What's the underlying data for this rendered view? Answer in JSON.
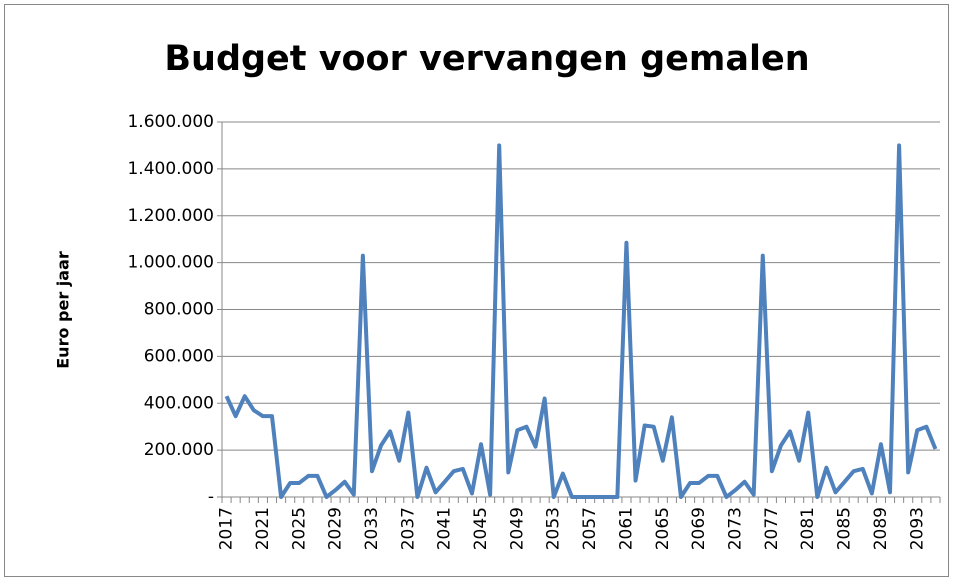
{
  "chart_data": {
    "type": "line",
    "title": "Budget voor vervangen gemalen",
    "y_label": "Euro per jaar",
    "categories": [
      "2017",
      null,
      null,
      null,
      "2021",
      null,
      null,
      null,
      "2025",
      null,
      null,
      null,
      "2029",
      null,
      null,
      null,
      "2033",
      null,
      null,
      null,
      "2037",
      null,
      null,
      null,
      "2041",
      null,
      null,
      null,
      "2045",
      null,
      null,
      null,
      "2049",
      null,
      null,
      null,
      "2053",
      null,
      null,
      null,
      "2057",
      null,
      null,
      null,
      "2061",
      null,
      null,
      null,
      "2065",
      null,
      null,
      null,
      "2069",
      null,
      null,
      null,
      "2073",
      null,
      null,
      null,
      "2077",
      null,
      null,
      null,
      "2081",
      null,
      null,
      null,
      "2085",
      null,
      null,
      null,
      "2089",
      null,
      null,
      null,
      "2093",
      null,
      null
    ],
    "series": [
      {
        "name": "Budget",
        "color": "#4f81bd",
        "values": [
          430000,
          345000,
          430000,
          370000,
          345000,
          345000,
          0,
          60000,
          60000,
          90000,
          90000,
          0,
          30000,
          65000,
          10000,
          1030000,
          110000,
          220000,
          280000,
          155000,
          360000,
          0,
          125000,
          20000,
          65000,
          110000,
          120000,
          15000,
          225000,
          10000,
          1500000,
          105000,
          285000,
          300000,
          215000,
          420000,
          0,
          100000,
          0,
          0,
          0,
          0,
          0,
          0,
          1085000,
          70000,
          305000,
          300000,
          155000,
          340000,
          0,
          60000,
          60000,
          90000,
          90000,
          0,
          30000,
          65000,
          10000,
          1030000,
          110000,
          220000,
          280000,
          155000,
          360000,
          0,
          125000,
          20000,
          65000,
          110000,
          120000,
          15000,
          225000,
          20000,
          1500000,
          105000,
          285000,
          300000,
          205000
        ]
      }
    ],
    "ylim": [
      0,
      1600000
    ],
    "yticks": [
      {
        "value": 0,
        "label": "-"
      },
      {
        "value": 200000,
        "label": "200.000"
      },
      {
        "value": 400000,
        "label": "400.000"
      },
      {
        "value": 600000,
        "label": "600.000"
      },
      {
        "value": 800000,
        "label": "800.000"
      },
      {
        "value": 1000000,
        "label": "1.000.000"
      },
      {
        "value": 1200000,
        "label": "1.200.000"
      },
      {
        "value": 1400000,
        "label": "1.400.000"
      },
      {
        "value": 1600000,
        "label": "1.600.000"
      }
    ],
    "grid": true
  }
}
